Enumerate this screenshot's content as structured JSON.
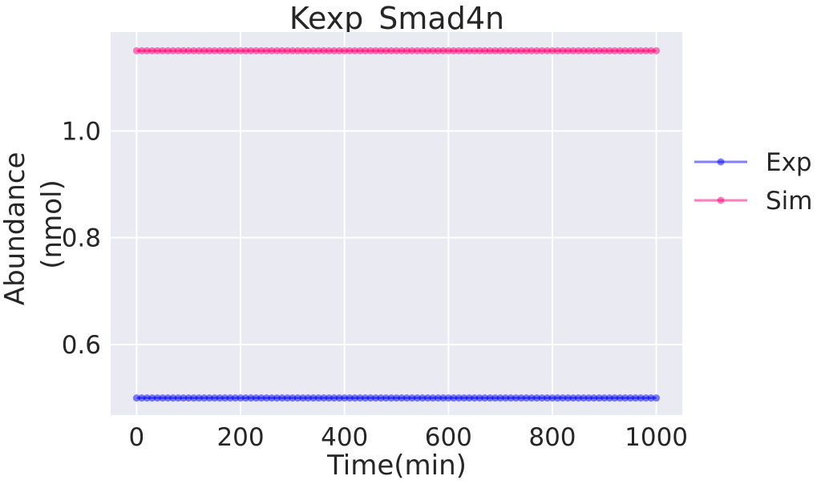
{
  "chart_data": {
    "type": "line",
    "title": "Kexp_Smad4n",
    "xlabel": "Time(min)",
    "ylabel_lines": [
      "Abundance",
      "(nmol)"
    ],
    "xlim": [
      -50,
      1050
    ],
    "ylim": [
      0.468,
      1.185
    ],
    "xticks": [
      0,
      200,
      400,
      600,
      800,
      1000
    ],
    "xtick_labels": [
      "0",
      "200",
      "400",
      "600",
      "800",
      "1000"
    ],
    "yticks": [
      0.6,
      0.8,
      1.0
    ],
    "ytick_labels": [
      "0.6",
      "0.8",
      "1.0"
    ],
    "grid": true,
    "legend_position": "right",
    "x": {
      "start": 0,
      "stop": 1000,
      "step": 10
    },
    "series": [
      {
        "name": "Exp",
        "color": "#0000ff",
        "value": 0.5,
        "marker": "circle"
      },
      {
        "name": "Sim",
        "color": "#ff0073",
        "value": 1.15,
        "marker": "circle"
      }
    ]
  }
}
